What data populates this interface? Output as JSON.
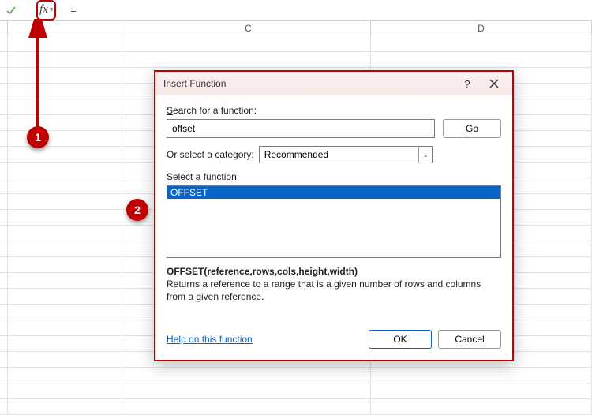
{
  "formula_bar": {
    "fx_label": "fx",
    "value": "="
  },
  "columns": {
    "c": "C",
    "d": "D",
    "widths": {
      "a_stub": 10,
      "b": 150,
      "c": 310,
      "d": 280
    }
  },
  "markers": {
    "one": "1",
    "two": "2"
  },
  "dialog": {
    "title": "Insert Function",
    "help_symbol": "?",
    "search_label_pre": "",
    "search_label_u": "S",
    "search_label_post": "earch for a function:",
    "search_value": "offset",
    "go_label_u": "G",
    "go_label_post": "o",
    "category_label": "Or select a ",
    "category_label_u": "c",
    "category_label_post": "ategory:",
    "category_value": "Recommended",
    "select_fn_label": "Select a functio",
    "select_fn_label_u": "n",
    "select_fn_label_post": ":",
    "fn_items": [
      "OFFSET"
    ],
    "signature": "OFFSET(reference,rows,cols,height,width)",
    "description": "Returns a reference to a range that is a given number of rows and columns from a given reference.",
    "help_link": "Help on this function",
    "ok": "OK",
    "cancel": "Cancel"
  },
  "style": {
    "accent_red": "#c00000",
    "selection_blue": "#0a63c7"
  }
}
